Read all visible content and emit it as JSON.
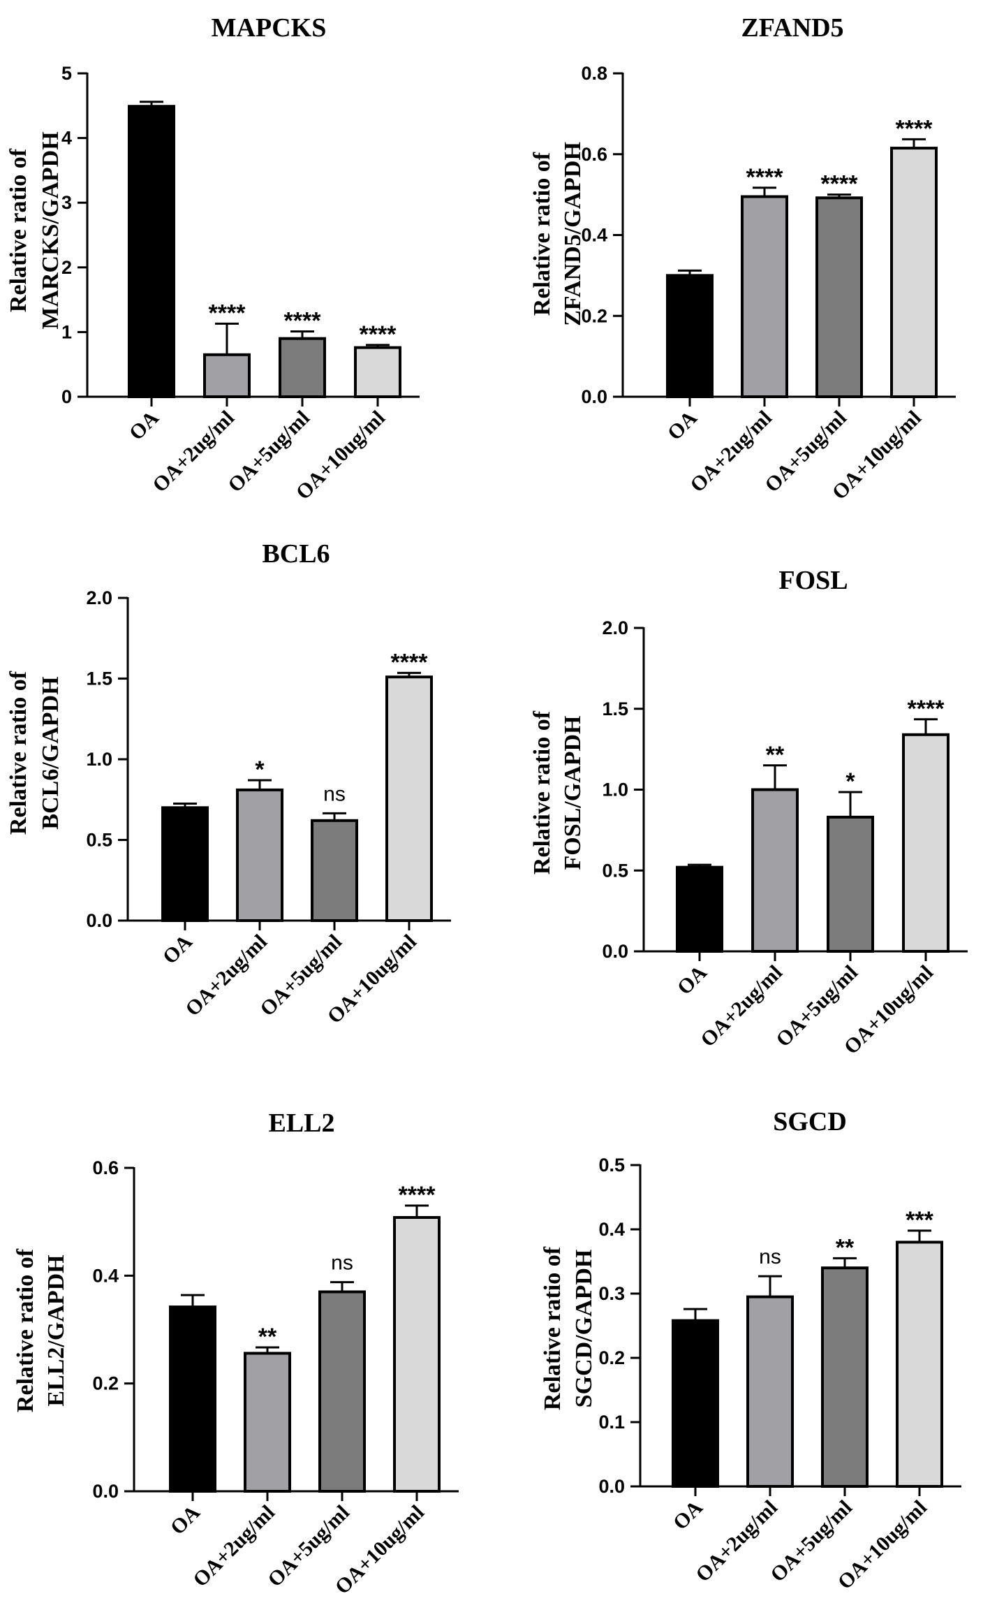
{
  "figure": {
    "categories": [
      "OA",
      "OA+2ug/ml",
      "OA+5ug/ml",
      "OA+10ug/ml"
    ]
  },
  "bar_colors": [
    "#000000",
    "#a0a0a5",
    "#7c7c7c",
    "#d9d9d9"
  ],
  "chart_data": [
    {
      "type": "bar",
      "title": "MAPCKS",
      "ylabel": [
        "Relative ratio of",
        "MARCKS/GAPDH"
      ],
      "categories": [
        "OA",
        "OA+2ug/ml",
        "OA+5ug/ml",
        "OA+10ug/ml"
      ],
      "values": [
        4.49,
        0.65,
        0.9,
        0.76
      ],
      "errors": [
        0.07,
        0.48,
        0.11,
        0.04
      ],
      "significance": [
        "",
        "****",
        "****",
        "****"
      ],
      "ylim": [
        0,
        5
      ],
      "yticks": [
        0,
        1,
        2,
        3,
        4,
        5
      ],
      "ytick_labels": [
        "0",
        "1",
        "2",
        "3",
        "4",
        "5"
      ]
    },
    {
      "type": "bar",
      "title": "ZFAND5",
      "ylabel": [
        "Relative ratio of",
        "ZFAND5/GAPDH"
      ],
      "categories": [
        "OA",
        "OA+2ug/ml",
        "OA+5ug/ml",
        "OA+10ug/ml"
      ],
      "values": [
        0.3,
        0.495,
        0.492,
        0.615
      ],
      "errors": [
        0.012,
        0.022,
        0.008,
        0.022
      ],
      "significance": [
        "",
        "****",
        "****",
        "****"
      ],
      "ylim": [
        0,
        0.8
      ],
      "yticks": [
        0,
        0.2,
        0.4,
        0.6,
        0.8
      ],
      "ytick_labels": [
        "0.0",
        "0.2",
        "0.4",
        "0.6",
        "0.8"
      ]
    },
    {
      "type": "bar",
      "title": "BCL6",
      "ylabel": [
        "Relative ratio of",
        "BCL6/GAPDH"
      ],
      "categories": [
        "OA",
        "OA+2ug/ml",
        "OA+5ug/ml",
        "OA+10ug/ml"
      ],
      "values": [
        0.7,
        0.81,
        0.62,
        1.51
      ],
      "errors": [
        0.025,
        0.06,
        0.045,
        0.025
      ],
      "significance": [
        "",
        "*",
        "ns",
        "****"
      ],
      "ylim": [
        0,
        2.0
      ],
      "yticks": [
        0,
        0.5,
        1.0,
        1.5,
        2.0
      ],
      "ytick_labels": [
        "0.0",
        "0.5",
        "1.0",
        "1.5",
        "2.0"
      ]
    },
    {
      "type": "bar",
      "title": "FOSL",
      "ylabel": [
        "Relative ratio of",
        "FOSL/GAPDH"
      ],
      "categories": [
        "OA",
        "OA+2ug/ml",
        "OA+5ug/ml",
        "OA+10ug/ml"
      ],
      "values": [
        0.52,
        1.0,
        0.83,
        1.34
      ],
      "errors": [
        0.015,
        0.15,
        0.155,
        0.095
      ],
      "significance": [
        "",
        "**",
        "*",
        "****"
      ],
      "ylim": [
        0,
        2.0
      ],
      "yticks": [
        0,
        0.5,
        1.0,
        1.5,
        2.0
      ],
      "ytick_labels": [
        "0.0",
        "0.5",
        "1.0",
        "1.5",
        "2.0"
      ]
    },
    {
      "type": "bar",
      "title": "ELL2",
      "ylabel": [
        "Relative ratio of",
        "ELL2/GAPDH"
      ],
      "categories": [
        "OA",
        "OA+2ug/ml",
        "OA+5ug/ml",
        "OA+10ug/ml"
      ],
      "values": [
        0.342,
        0.256,
        0.37,
        0.508
      ],
      "errors": [
        0.022,
        0.011,
        0.018,
        0.022
      ],
      "significance": [
        "",
        "**",
        "ns",
        "****"
      ],
      "ylim": [
        0,
        0.6
      ],
      "yticks": [
        0,
        0.2,
        0.4,
        0.6
      ],
      "ytick_labels": [
        "0.0",
        "0.2",
        "0.4",
        "0.6"
      ]
    },
    {
      "type": "bar",
      "title": "SGCD",
      "ylabel": [
        "Relative ratio of",
        "SGCD/GAPDH"
      ],
      "categories": [
        "OA",
        "OA+2ug/ml",
        "OA+5ug/ml",
        "OA+10ug/ml"
      ],
      "values": [
        0.258,
        0.295,
        0.34,
        0.38
      ],
      "errors": [
        0.018,
        0.032,
        0.015,
        0.018
      ],
      "significance": [
        "",
        "ns",
        "**",
        "***"
      ],
      "ylim": [
        0,
        0.5
      ],
      "yticks": [
        0,
        0.1,
        0.2,
        0.3,
        0.4,
        0.5
      ],
      "ytick_labels": [
        "0.0",
        "0.1",
        "0.2",
        "0.3",
        "0.4",
        "0.5"
      ]
    }
  ]
}
